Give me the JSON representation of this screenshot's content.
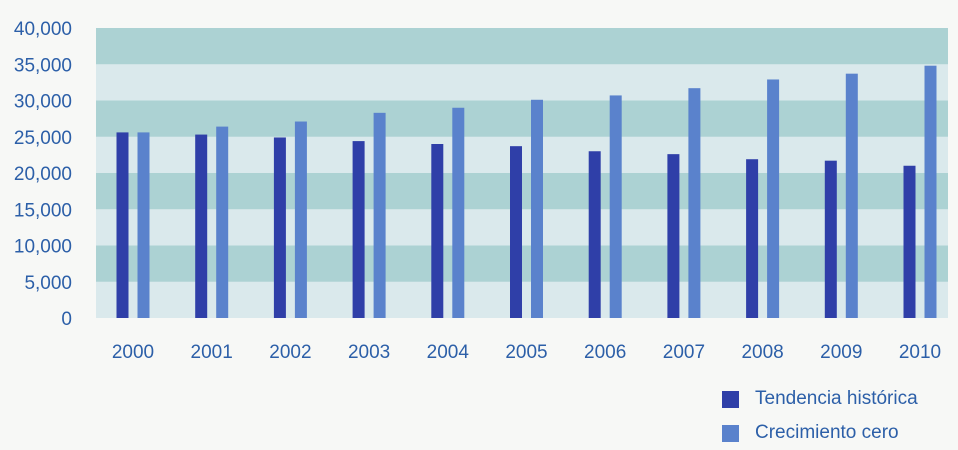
{
  "colors": {
    "tendencia": "#2f3fa8",
    "crecimiento": "#5a82cc",
    "band_dark": "#a9d1d1",
    "band_light": "#d0e7e8",
    "plot_bg": "#e6ecf1",
    "text": "#2c5fa8"
  },
  "chart_data": {
    "type": "bar",
    "title": "",
    "xlabel": "",
    "ylabel": "",
    "ylim": [
      0,
      40000
    ],
    "yticks": [
      "0",
      "5,000",
      "10,000",
      "15,000",
      "20,000",
      "25,000",
      "30,000",
      "35,000",
      "40,000"
    ],
    "ytick_values": [
      0,
      5000,
      10000,
      15000,
      20000,
      25000,
      30000,
      35000,
      40000
    ],
    "categories": [
      "2000",
      "2001",
      "2002",
      "2003",
      "2004",
      "2005",
      "2006",
      "2007",
      "2008",
      "2009",
      "2010"
    ],
    "series": [
      {
        "name": "Tendencia histórica",
        "values": [
          25600,
          25300,
          24900,
          24400,
          24000,
          23700,
          23000,
          22600,
          21900,
          21700,
          21000
        ]
      },
      {
        "name": "Crecimiento cero",
        "values": [
          25600,
          26400,
          27100,
          28300,
          29000,
          30100,
          30700,
          31700,
          32900,
          33700,
          34800
        ]
      }
    ],
    "legend_position": "bottom-right",
    "grid": "horizontal-bands"
  }
}
